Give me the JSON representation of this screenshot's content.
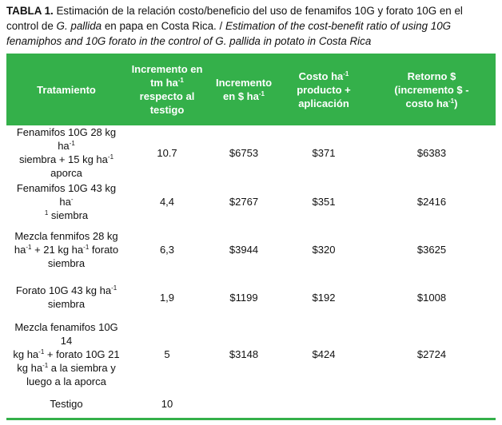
{
  "caption": {
    "label": "TABLA 1.",
    "es_1": " Estimación de la relación costo/beneficio del uso de fenamifos 10G y forato 10G en el control de ",
    "es_species": "G. pallida",
    "es_2": " en papa en Costa Rica. / ",
    "en_1": "Estimation of the cost-benefit ratio of using  10G fenamiphos and 10G forato in the control of ",
    "en_species": "G. pallida",
    "en_2": " in potato in Costa Rica"
  },
  "headers": {
    "h1": "Tratamiento",
    "h2_a": "Incremento en",
    "h2_b": "tm ha",
    "h2_sup": "-1",
    "h2_c": "respecto al",
    "h2_d": "testigo",
    "h3_a": "Incremento",
    "h3_b": "en  $  ha",
    "h3_sup": "-1",
    "h4_a": "Costo  ha",
    "h4_sup": "-1",
    "h4_b": "producto +",
    "h4_c": "aplicación",
    "h5_a": "Retorno $",
    "h5_b": "(incremento   $ -",
    "h5_c": "costo ha",
    "h5_sup": "-1",
    "h5_d": ")"
  },
  "rows": [
    {
      "t1": "Fenamifos 10G 28 kg ha",
      "s1": "-1",
      "t2": "siembra + 15 kg ha",
      "s2": "-1",
      "t3": "aporca",
      "inc_tm": "10.7",
      "inc_usd": "$6753",
      "costo": "$371",
      "retorno": "$6383"
    },
    {
      "t1": "Fenamifos  10G  43 kg  ha",
      "s1": "-",
      "t2": "",
      "s2": "1",
      "t3": " siembra",
      "inc_tm": "4,4",
      "inc_usd": "$2767",
      "costo": "$351",
      "retorno": "$2416"
    },
    {
      "t1": "Mezcla fenmifos 28 kg",
      "t2": "ha",
      "s2": "-1",
      "t3": "  + 21 kg  ha",
      "s3": "-1",
      "t4": "  forato",
      "t5": "siembra",
      "inc_tm": "6,3",
      "inc_usd": "$3944",
      "costo": "$320",
      "retorno": "$3625"
    },
    {
      "t1": "Forato 10G 43 kg ha",
      "s1": "-1",
      "t2": "siembra",
      "inc_tm": "1,9",
      "inc_usd": "$1199",
      "costo": "$192",
      "retorno": "$1008"
    },
    {
      "t1": "Mezcla  fenamifos 10G 14",
      "t2": "kg  ha",
      "s2": "-1",
      "t3": "  + forato 10G 21",
      "t4": "kg  ha",
      "s4": "-1",
      "t5": "  a la siembra y",
      "t6": "luego a la aporca",
      "inc_tm": "5",
      "inc_usd": "$3148",
      "costo": "$424",
      "retorno": "$2724"
    },
    {
      "t1": "Testigo",
      "inc_tm": "10",
      "inc_usd": "",
      "costo": "",
      "retorno": ""
    }
  ]
}
